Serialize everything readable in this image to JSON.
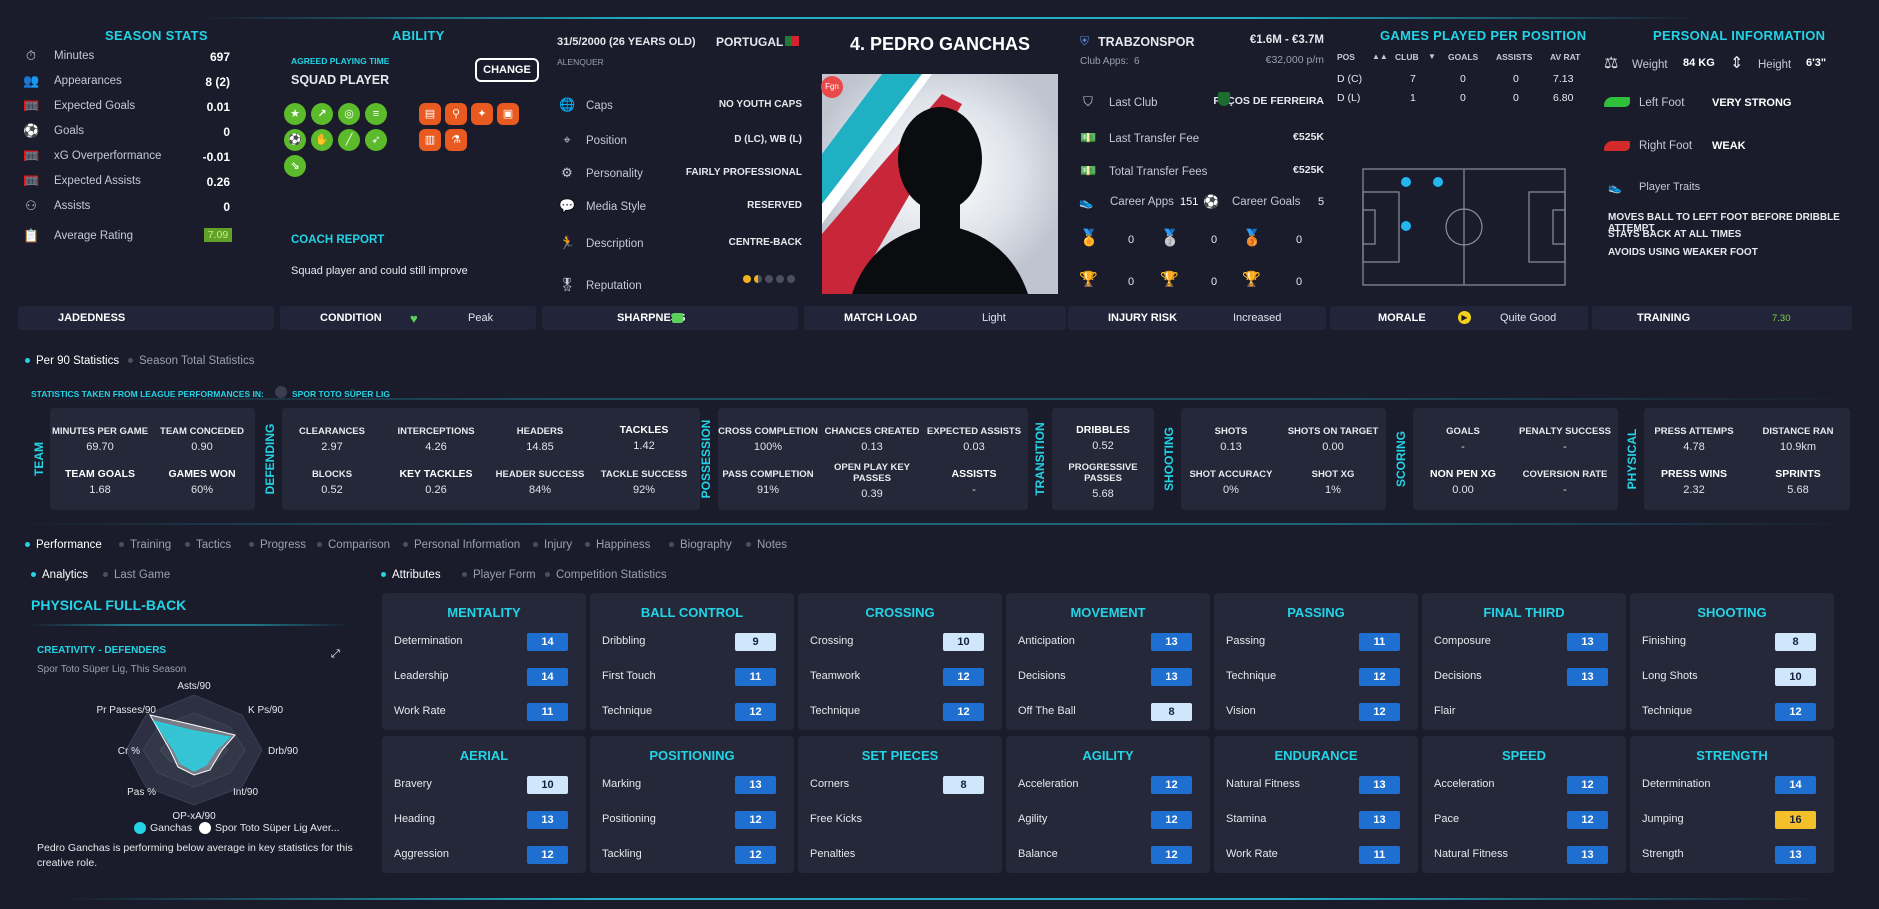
{
  "season_stats": {
    "title": "SEASON STATS",
    "rows": [
      {
        "icon": "stopwatch-icon",
        "label": "Minutes",
        "value": "697"
      },
      {
        "icon": "people-icon",
        "label": "Appearances",
        "value": "8 (2)"
      },
      {
        "icon": "goal-icon",
        "label": "Expected Goals",
        "value": "0.01"
      },
      {
        "icon": "ball-icon",
        "label": "Goals",
        "value": "0"
      },
      {
        "icon": "goal-icon",
        "label": "xG Overperformance",
        "value": "-0.01"
      },
      {
        "icon": "goal-icon",
        "label": "Expected Assists",
        "value": "0.26"
      },
      {
        "icon": "assist-icon",
        "label": "Assists",
        "value": "0"
      },
      {
        "icon": "clipboard-icon",
        "label": "Average Rating",
        "value": "7.09"
      }
    ]
  },
  "ability": {
    "title": "ABILITY",
    "playing_time_label": "AGREED PLAYING TIME",
    "playing_time_value": "SQUAD PLAYER",
    "change_button": "CHANGE",
    "coach_report_title": "COACH REPORT",
    "coach_report_text": "Squad player and could still improve"
  },
  "bio": {
    "dob": "31/5/2000 (26 YEARS OLD)",
    "birthplace": "ALENQUER",
    "nation": "PORTUGAL",
    "rows": [
      {
        "icon": "globe-icon",
        "label": "Caps",
        "value": "NO YOUTH CAPS"
      },
      {
        "icon": "pin-icon",
        "label": "Position",
        "value": "D (LC), WB (L)"
      },
      {
        "icon": "gears-icon",
        "label": "Personality",
        "value": "FAIRLY PROFESSIONAL"
      },
      {
        "icon": "speech-icon",
        "label": "Media Style",
        "value": "RESERVED"
      },
      {
        "icon": "runner-icon",
        "label": "Description",
        "value": "CENTRE-BACK"
      },
      {
        "icon": "rosette-icon",
        "label": "Reputation",
        "value": ""
      }
    ],
    "reputation_stars": 1.5
  },
  "player": {
    "name": "4. PEDRO GANCHAS",
    "badge": "Fgn"
  },
  "club": {
    "name": "TRABZONSPOR",
    "apps_label": "Club Apps:",
    "apps_value": "6",
    "value_range": "€1.6M - €3.7M",
    "wage": "€32,000 p/m",
    "rows": [
      {
        "icon": "shield-icon",
        "label": "Last Club",
        "value": "PAÇOS DE FERREIRA"
      },
      {
        "icon": "money-icon",
        "label": "Last Transfer Fee",
        "value": "€525K"
      },
      {
        "icon": "money-icon",
        "label": "Total Transfer Fees",
        "value": "€525K"
      }
    ],
    "career_apps_label": "Career Apps",
    "career_apps_value": "151",
    "career_goals_label": "Career Goals",
    "career_goals_value": "5",
    "medals": [
      "0",
      "0",
      "0"
    ],
    "trophies": [
      "0",
      "0",
      "0"
    ]
  },
  "games_per_position": {
    "title": "GAMES PLAYED PER POSITION",
    "headers": [
      "POS",
      "CLUB",
      "GOALS",
      "ASSISTS",
      "AV RAT"
    ],
    "rows": [
      [
        "D (C)",
        "7",
        "0",
        "0",
        "7.13"
      ],
      [
        "D (L)",
        "1",
        "0",
        "0",
        "6.80"
      ]
    ]
  },
  "personal_info": {
    "title": "PERSONAL INFORMATION",
    "weight_label": "Weight",
    "weight_value": "84 KG",
    "height_label": "Height",
    "height_value": "6'3\"",
    "left_foot_label": "Left Foot",
    "left_foot_value": "VERY STRONG",
    "right_foot_label": "Right Foot",
    "right_foot_value": "WEAK",
    "traits_label": "Player Traits",
    "traits": [
      "MOVES BALL TO LEFT FOOT BEFORE DRIBBLE ATTEMPT",
      "STAYS BACK AT ALL TIMES",
      "AVOIDS USING WEAKER FOOT"
    ]
  },
  "status_bar": [
    {
      "label": "JADEDNESS",
      "value": ""
    },
    {
      "label": "CONDITION",
      "value": "Peak"
    },
    {
      "label": "SHARPNESS",
      "value": ""
    },
    {
      "label": "MATCH LOAD",
      "value": "Light"
    },
    {
      "label": "INJURY RISK",
      "value": "Increased"
    },
    {
      "label": "MORALE",
      "value": "Quite Good"
    },
    {
      "label": "TRAINING",
      "value": "7.30"
    }
  ],
  "stats_toggle": {
    "per90": "Per 90 Statistics",
    "season": "Season Total Statistics",
    "league_note": "STATISTICS TAKEN FROM LEAGUE PERFORMANCES IN:",
    "league": "SPOR TOTO SÜPER LIG"
  },
  "stat_groups": [
    {
      "name": "TEAM",
      "cells": [
        {
          "h": "MINUTES PER GAME",
          "v": "69.70"
        },
        {
          "h": "TEAM CONCEDED",
          "v": "0.90"
        },
        {
          "h": "TEAM GOALS",
          "v": "1.68"
        },
        {
          "h": "GAMES WON",
          "v": "60%"
        }
      ]
    },
    {
      "name": "DEFENDING",
      "cells": [
        {
          "h": "CLEARANCES",
          "v": "2.97"
        },
        {
          "h": "INTERCEPTIONS",
          "v": "4.26"
        },
        {
          "h": "HEADERS",
          "v": "14.85"
        },
        {
          "h": "TACKLES",
          "v": "1.42"
        },
        {
          "h": "BLOCKS",
          "v": "0.52"
        },
        {
          "h": "KEY TACKLES",
          "v": "0.26"
        },
        {
          "h": "HEADER SUCCESS",
          "v": "84%"
        },
        {
          "h": "TACKLE SUCCESS",
          "v": "92%"
        }
      ]
    },
    {
      "name": "POSSESSION",
      "cells": [
        {
          "h": "CROSS COMPLETION",
          "v": "100%"
        },
        {
          "h": "CHANCES CREATED",
          "v": "0.13"
        },
        {
          "h": "EXPECTED ASSISTS",
          "v": "0.03"
        },
        {
          "h": "PASS COMPLETION",
          "v": "91%"
        },
        {
          "h": "OPEN PLAY KEY PASSES",
          "v": "0.39"
        },
        {
          "h": "ASSISTS",
          "v": "-"
        }
      ]
    },
    {
      "name": "TRANSITION",
      "cells": [
        {
          "h": "DRIBBLES",
          "v": "0.52"
        },
        {
          "h": "PROGRESSIVE PASSES",
          "v": "5.68"
        }
      ]
    },
    {
      "name": "SHOOTING",
      "cells": [
        {
          "h": "SHOTS",
          "v": "0.13"
        },
        {
          "h": "SHOTS ON TARGET",
          "v": "0.00"
        },
        {
          "h": "SHOT ACCURACY",
          "v": "0%"
        },
        {
          "h": "SHOT XG",
          "v": "1%"
        }
      ]
    },
    {
      "name": "SCORING",
      "cells": [
        {
          "h": "GOALS",
          "v": "-"
        },
        {
          "h": "PENALTY SUCCESS",
          "v": "-"
        },
        {
          "h": "NON PEN XG",
          "v": "0.00"
        },
        {
          "h": "COVERSION RATE",
          "v": "-"
        }
      ]
    },
    {
      "name": "PHYSICAL",
      "cells": [
        {
          "h": "PRESS ATTEMPS",
          "v": "4.78"
        },
        {
          "h": "DISTANCE RAN",
          "v": "10.9km"
        },
        {
          "h": "PRESS WINS",
          "v": "2.32"
        },
        {
          "h": "SPRINTS",
          "v": "5.68"
        }
      ]
    }
  ],
  "nav_tabs": [
    "Performance",
    "Training",
    "Tactics",
    "Progress",
    "Comparison",
    "Personal Information",
    "Injury",
    "Happiness",
    "Biography",
    "Notes"
  ],
  "sub_tabs_left": [
    "Analytics",
    "Last Game"
  ],
  "sub_tabs_right": [
    "Attributes",
    "Player Form",
    "Competition Statistics"
  ],
  "analytics": {
    "role": "PHYSICAL FULL-BACK",
    "chart_title": "CREATIVITY - DEFENDERS",
    "chart_sub": "Spor Toto Süper Lig, This Season",
    "axes": [
      "Asts/90",
      "K Ps/90",
      "Drb/90",
      "Int/90",
      "OP-xA/90",
      "Pas %",
      "Cr %",
      "Pr Passes/90"
    ],
    "legend_player": "Ganchas",
    "legend_avg": "Spor Toto Süper Lig Aver...",
    "summary": "Pedro Ganchas is performing below average in key statistics for this creative role.",
    "player_color": "#22d4e6",
    "avg_color": "#ffffff"
  },
  "attributes": [
    {
      "group": "MENTALITY",
      "items": [
        [
          "Determination",
          "14",
          "b"
        ],
        [
          "Leadership",
          "14",
          "b"
        ],
        [
          "Work Rate",
          "11",
          "b"
        ]
      ]
    },
    {
      "group": "BALL CONTROL",
      "items": [
        [
          "Dribbling",
          "9",
          "l"
        ],
        [
          "First Touch",
          "11",
          "b"
        ],
        [
          "Technique",
          "12",
          "b"
        ]
      ]
    },
    {
      "group": "CROSSING",
      "items": [
        [
          "Crossing",
          "10",
          "l"
        ],
        [
          "Teamwork",
          "12",
          "b"
        ],
        [
          "Technique",
          "12",
          "b"
        ]
      ]
    },
    {
      "group": "MOVEMENT",
      "items": [
        [
          "Anticipation",
          "13",
          "b"
        ],
        [
          "Decisions",
          "13",
          "b"
        ],
        [
          "Off The Ball",
          "8",
          "l"
        ]
      ]
    },
    {
      "group": "PASSING",
      "items": [
        [
          "Passing",
          "11",
          "b"
        ],
        [
          "Technique",
          "12",
          "b"
        ],
        [
          "Vision",
          "12",
          "b"
        ]
      ]
    },
    {
      "group": "FINAL THIRD",
      "items": [
        [
          "Composure",
          "13",
          "b"
        ],
        [
          "Decisions",
          "13",
          "b"
        ],
        [
          "Flair",
          "",
          ""
        ]
      ]
    },
    {
      "group": "SHOOTING",
      "items": [
        [
          "Finishing",
          "8",
          "l"
        ],
        [
          "Long Shots",
          "10",
          "l"
        ],
        [
          "Technique",
          "12",
          "b"
        ]
      ]
    },
    {
      "group": "AERIAL",
      "items": [
        [
          "Bravery",
          "10",
          "l"
        ],
        [
          "Heading",
          "13",
          "b"
        ],
        [
          "Aggression",
          "12",
          "b"
        ]
      ]
    },
    {
      "group": "POSITIONING",
      "items": [
        [
          "Marking",
          "13",
          "b"
        ],
        [
          "Positioning",
          "12",
          "b"
        ],
        [
          "Tackling",
          "12",
          "b"
        ]
      ]
    },
    {
      "group": "SET PIECES",
      "items": [
        [
          "Corners",
          "8",
          "l"
        ],
        [
          "Free Kicks",
          "",
          ""
        ],
        [
          "Penalties",
          "",
          ""
        ]
      ]
    },
    {
      "group": "AGILITY",
      "items": [
        [
          "Acceleration",
          "12",
          "b"
        ],
        [
          "Agility",
          "12",
          "b"
        ],
        [
          "Balance",
          "12",
          "b"
        ]
      ]
    },
    {
      "group": "ENDURANCE",
      "items": [
        [
          "Natural Fitness",
          "13",
          "b"
        ],
        [
          "Stamina",
          "13",
          "b"
        ],
        [
          "Work Rate",
          "11",
          "b"
        ]
      ]
    },
    {
      "group": "SPEED",
      "items": [
        [
          "Acceleration",
          "12",
          "b"
        ],
        [
          "Pace",
          "12",
          "b"
        ],
        [
          "Natural Fitness",
          "13",
          "b"
        ]
      ]
    },
    {
      "group": "STRENGTH",
      "items": [
        [
          "Determination",
          "14",
          "b"
        ],
        [
          "Jumping",
          "16",
          "y"
        ],
        [
          "Strength",
          "13",
          "b"
        ]
      ]
    }
  ]
}
